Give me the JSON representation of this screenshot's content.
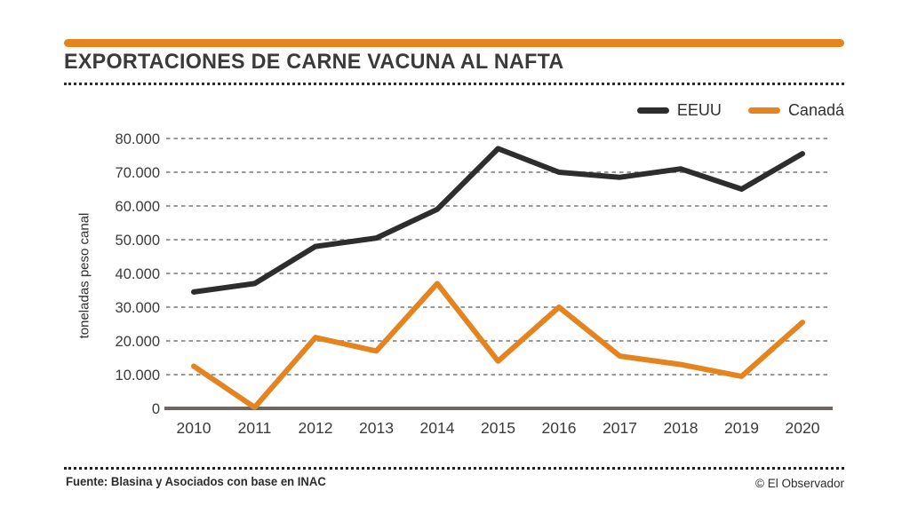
{
  "header": {
    "title": "EXPORTACIONES DE CARNE VACUNA AL NAFTA"
  },
  "chart_data": {
    "type": "line",
    "x": [
      2010,
      2011,
      2012,
      2013,
      2014,
      2015,
      2016,
      2017,
      2018,
      2019,
      2020
    ],
    "xtick_labels": [
      "2010",
      "2011",
      "2012",
      "2013",
      "2014",
      "2015",
      "2016",
      "2017",
      "2018",
      "2019",
      "2020"
    ],
    "series": [
      {
        "name": "EEUU",
        "color": "#2d2d2d",
        "values": [
          34500,
          37000,
          48000,
          50500,
          59000,
          77000,
          70000,
          68500,
          71000,
          65000,
          75500
        ]
      },
      {
        "name": "Canadá",
        "color": "#e5831f",
        "values": [
          12500,
          300,
          21000,
          17000,
          37000,
          14000,
          30000,
          15500,
          13000,
          9500,
          25500
        ]
      }
    ],
    "ylabel": "toneladas peso canal",
    "ylim": [
      0,
      80000
    ],
    "ytick_step": 10000,
    "ytick_labels": [
      "0",
      "10.000",
      "20.000",
      "30.000",
      "40.000",
      "50.000",
      "60.000",
      "70.000",
      "80.000"
    ],
    "grid": "horizontal-dashed",
    "legend_position": "top-right"
  },
  "footer": {
    "source": "Fuente: Blasina y Asociados con base en INAC",
    "credit": "© El Observador"
  },
  "colors": {
    "accent": "#e5831f",
    "series_black": "#2d2d2d",
    "grid": "#8c8c8c",
    "axis_line": "#6f6661",
    "text": "#3b3b3b"
  }
}
